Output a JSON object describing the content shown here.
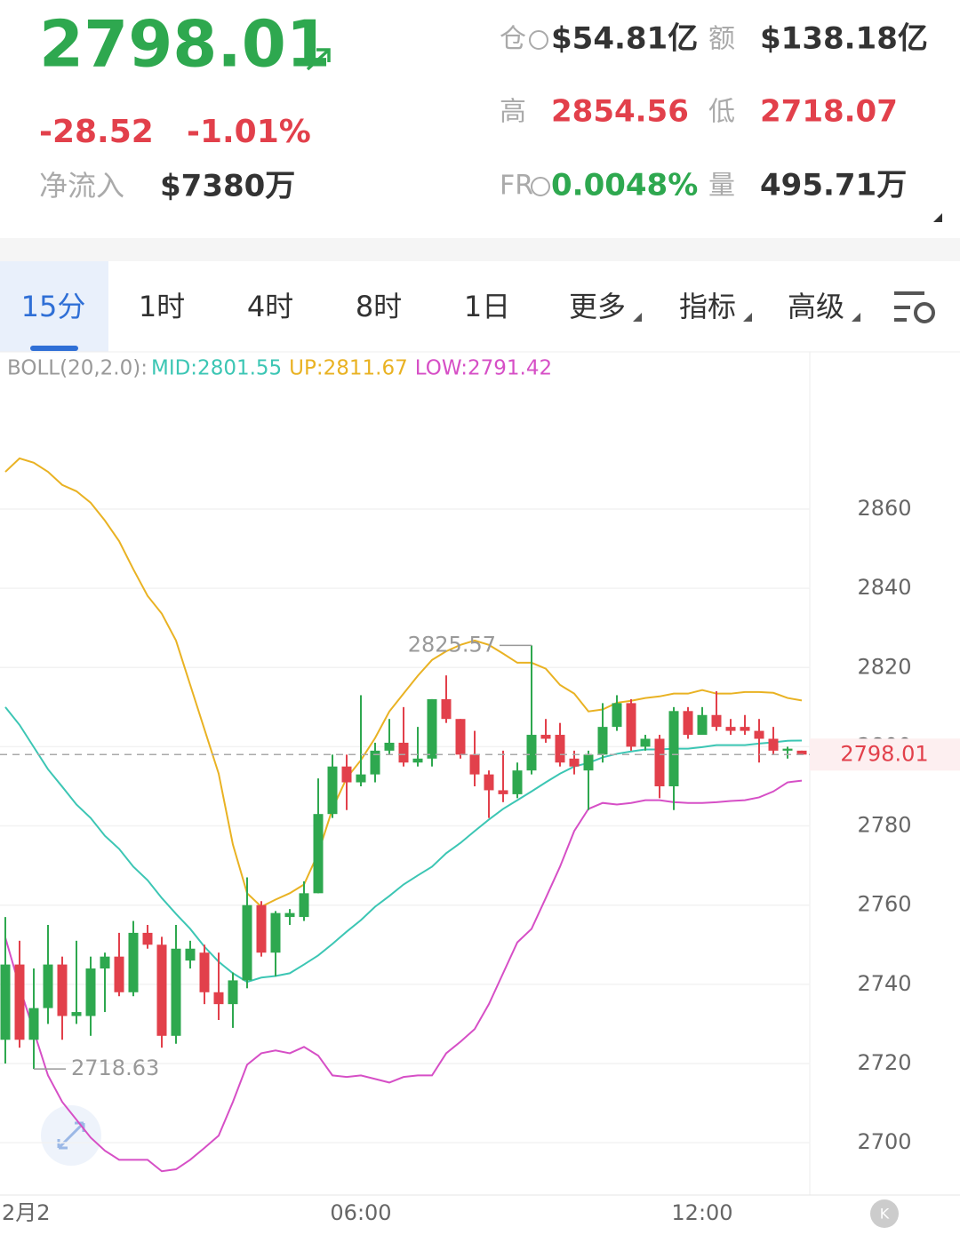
{
  "header": {
    "price": "2798.01",
    "change": "-28.52",
    "change_pct": "-1.01%",
    "inflow_label": "净流入",
    "inflow": "$7380万",
    "stats": [
      {
        "label": "仓",
        "value": "$54.81亿"
      },
      {
        "label": "额",
        "value": "$138.18亿"
      },
      {
        "label": "高",
        "value": "2854.56"
      },
      {
        "label": "低",
        "value": "2718.07"
      },
      {
        "label": "FR",
        "value": "0.0048%"
      },
      {
        "label": "量",
        "value": "495.71万"
      }
    ]
  },
  "tabs": [
    "15分",
    "1时",
    "4时",
    "8时",
    "1日",
    "更多",
    "指标",
    "高级"
  ],
  "chart_data": {
    "type": "candlestick",
    "indicator": "BOLL(20,2.0):",
    "categories": [
      null,
      "2月2",
      null,
      null,
      null,
      null,
      null,
      null,
      null,
      null,
      null,
      null,
      null,
      null,
      null,
      null,
      null,
      null,
      null,
      null,
      null,
      null,
      null,
      null,
      null,
      "06:00",
      null,
      null,
      null,
      null,
      null,
      null,
      null,
      null,
      null,
      null,
      null,
      null,
      null,
      null,
      null,
      null,
      null,
      null,
      null,
      null,
      null,
      null,
      null,
      "12:00",
      null,
      null,
      null,
      null,
      null,
      null,
      null
    ],
    "open": [
      2726,
      2745,
      2726,
      2734,
      2745,
      2732,
      2732,
      2744,
      2747,
      2738,
      2753,
      2750,
      2727,
      2746,
      2748,
      2738,
      2735,
      2741,
      2760,
      2748,
      2757,
      2757,
      2763,
      2783,
      2795,
      2791,
      2793,
      2799,
      2801,
      2796,
      2797,
      2812,
      2807,
      2798,
      2793,
      2789,
      2788,
      2794,
      2803,
      2803,
      2797,
      2794,
      2798,
      2805,
      2811,
      2800,
      2802,
      2790,
      2809,
      2803,
      2808,
      2805,
      2805,
      2804,
      2802,
      2799,
      2799
    ],
    "high": [
      2757,
      2751,
      2744,
      2755,
      2747,
      2751,
      2747,
      2748,
      2753,
      2756,
      2755,
      2752,
      2755,
      2751,
      2750,
      2748,
      2743,
      2767,
      2761,
      2758.5,
      2759,
      2766,
      2792,
      2798,
      2798,
      2813,
      2801,
      2807,
      2810,
      2805,
      2812,
      2818,
      2807,
      2804,
      2794,
      2799,
      2796,
      2825.57,
      2807,
      2806,
      2799,
      2799,
      2811,
      2813,
      2812,
      2803,
      2803,
      2810,
      2810,
      2810,
      2814,
      2807,
      2808,
      2807,
      2805,
      2800,
      2799
    ],
    "low": [
      2720,
      2724,
      2718.63,
      2730,
      2726,
      2730,
      2727,
      2733,
      2737,
      2737,
      2749,
      2724,
      2725,
      2744,
      2735,
      2731,
      2729,
      2739,
      2747,
      2742,
      2755,
      2756,
      2763,
      2782,
      2784,
      2790,
      2791,
      2798,
      2795,
      2795,
      2795,
      2806,
      2797,
      2790,
      2782,
      2786,
      2787,
      2793,
      2801,
      2795,
      2793,
      2784,
      2796,
      2804,
      2799,
      2799,
      2787,
      2784,
      2802,
      2803,
      2804,
      2803,
      2803,
      2796,
      2798,
      2797,
      2798
    ],
    "close": [
      2745,
      2726,
      2734,
      2745,
      2732,
      2733,
      2744,
      2747,
      2738,
      2753,
      2750,
      2727,
      2749,
      2749,
      2738,
      2735,
      2741,
      2760,
      2748,
      2758,
      2758,
      2763,
      2783,
      2795,
      2791,
      2793,
      2799,
      2801,
      2796,
      2797,
      2812,
      2807,
      2798,
      2793,
      2789,
      2788,
      2794,
      2803,
      2802,
      2796,
      2795,
      2798,
      2805,
      2811,
      2800,
      2802,
      2790,
      2809,
      2803,
      2808,
      2805,
      2804,
      2804,
      2802,
      2799,
      2799.5,
      2798.01
    ],
    "up_color": "#2ea84f",
    "down_color": "#e2404b",
    "series": [
      {
        "name": "MID:2801.55",
        "color": "#3cc6b4",
        "values": [
          2810.0,
          2805.5,
          2799.9,
          2794.3,
          2789.9,
          2785.4,
          2782.0,
          2777.5,
          2774.2,
          2769.7,
          2766.3,
          2761.8,
          2757.8,
          2754.0,
          2749.5,
          2745.7,
          2742.8,
          2740.6,
          2741.7,
          2742.1,
          2742.8,
          2745.0,
          2747.3,
          2750.2,
          2753.3,
          2756.2,
          2759.6,
          2762.3,
          2765.2,
          2767.5,
          2769.7,
          2773.1,
          2775.7,
          2778.7,
          2781.6,
          2784.3,
          2786.5,
          2788.7,
          2791.0,
          2793.2,
          2795.0,
          2795.9,
          2797.3,
          2798.2,
          2798.8,
          2799.3,
          2799.3,
          2799.5,
          2799.5,
          2799.9,
          2800.4,
          2800.4,
          2800.4,
          2800.8,
          2801.1,
          2801.5,
          2801.55
        ]
      },
      {
        "name": "UP:2811.67",
        "color": "#e9b223",
        "values": [
          2869.4,
          2872.8,
          2871.7,
          2869.4,
          2866.1,
          2864.5,
          2861.6,
          2857.1,
          2851.9,
          2844.8,
          2838.1,
          2833.6,
          2826.8,
          2815.6,
          2804.4,
          2793.2,
          2775.3,
          2763.0,
          2759.6,
          2761.4,
          2763.0,
          2765.2,
          2773.1,
          2784.3,
          2792.1,
          2796.6,
          2802.2,
          2808.9,
          2813.4,
          2817.9,
          2821.9,
          2824.1,
          2825.7,
          2826.8,
          2825.7,
          2823.5,
          2821.2,
          2821.2,
          2819.7,
          2815.6,
          2813.4,
          2808.9,
          2809.4,
          2811.1,
          2811.6,
          2812.3,
          2812.7,
          2813.4,
          2813.4,
          2814.3,
          2813.4,
          2813.4,
          2813.8,
          2813.8,
          2813.6,
          2812.3,
          2811.67
        ]
      },
      {
        "name": "LOW:2791.42",
        "color": "#d64fc6",
        "values": [
          2751.8,
          2739.4,
          2728.2,
          2717.0,
          2710.3,
          2705.8,
          2701.3,
          2698.0,
          2695.7,
          2695.7,
          2695.7,
          2692.8,
          2693.3,
          2695.7,
          2698.7,
          2701.8,
          2710.3,
          2719.7,
          2722.6,
          2723.3,
          2722.6,
          2724.2,
          2722.0,
          2717.0,
          2716.6,
          2717.0,
          2716.1,
          2715.2,
          2716.6,
          2717.0,
          2717.0,
          2722.6,
          2725.5,
          2728.7,
          2735.0,
          2742.8,
          2750.6,
          2754.0,
          2761.8,
          2769.7,
          2778.7,
          2784.3,
          2785.8,
          2785.4,
          2785.8,
          2786.5,
          2786.5,
          2786.0,
          2785.8,
          2785.8,
          2786.0,
          2786.3,
          2786.5,
          2787.2,
          2788.7,
          2791.0,
          2791.42
        ]
      }
    ],
    "ylim": [
      2686.8,
      2899.7
    ],
    "yticks": [
      2700,
      2720,
      2740,
      2760,
      2780,
      2800,
      2820,
      2840,
      2860
    ]
  }
}
